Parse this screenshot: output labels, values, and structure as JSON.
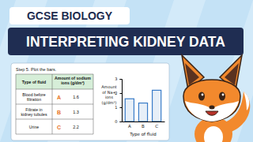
{
  "header": {
    "subject": "GCSE BIOLOGY",
    "title": "INTERPRETING KIDNEY DATA"
  },
  "step": "Step 5. Plot the bars.",
  "table": {
    "columns": [
      "Type of fluid",
      "Amount of sodium ions (g/dm³)"
    ],
    "rows": [
      [
        "Blood before filtration",
        "A",
        1.6
      ],
      [
        "Filtrate in kidney tubules",
        "B",
        1.3
      ],
      [
        "Urine",
        "C",
        2.2
      ]
    ]
  },
  "chart_data": {
    "type": "bar",
    "y_label": "Amount of Na+ ions (g/dm³)",
    "x_label": "Type of fluid",
    "categories": [
      "A",
      "B",
      "C"
    ],
    "values": [
      1.6,
      1.3,
      2.2
    ],
    "color": "#3a7cc8",
    "ylim": [
      0,
      3
    ],
    "yticks": [
      0,
      1,
      2,
      3
    ],
    "grid": false
  }
}
